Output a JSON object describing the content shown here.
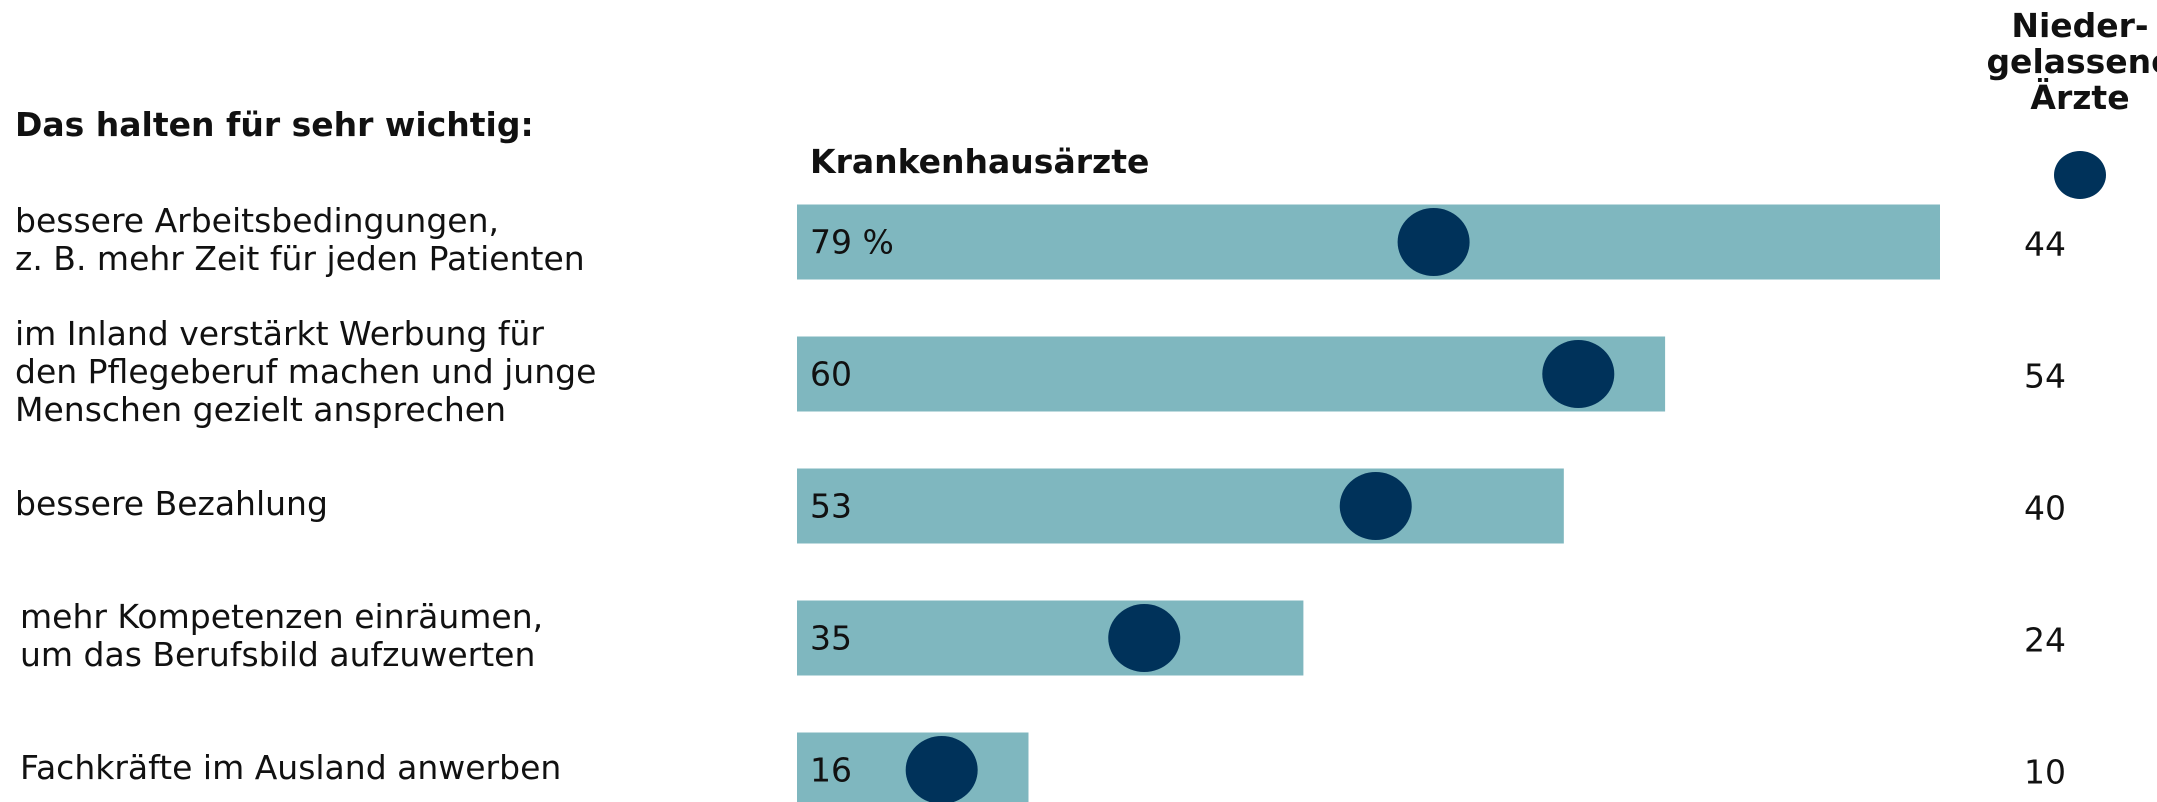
{
  "chart_data": {
    "type": "bar",
    "title": "Das halten für sehr wichtig:",
    "categories": [
      "bessere Arbeitsbedingungen,\nz. B. mehr Zeit für jeden Patienten",
      "im Inland verstärkt Werbung für\nden Pflegeberuf  machen und junge\nMenschen gezielt ansprechen",
      "bessere Bezahlung",
      "mehr Kompetenzen einräumen,\num das Berufsbild aufzuwerten",
      "Fachkräfte im Ausland anwerben"
    ],
    "series": [
      {
        "name": "Krankenhausärzte",
        "color": "#7fb7bf",
        "values": [
          79,
          60,
          53,
          35,
          16
        ],
        "value_labels": [
          "79 %",
          "60",
          "53",
          "35",
          "16"
        ]
      },
      {
        "name": "Nieder-\ngelassene\nÄrzte",
        "color": "#00325a",
        "values": [
          44,
          54,
          40,
          24,
          10
        ]
      }
    ]
  }
}
